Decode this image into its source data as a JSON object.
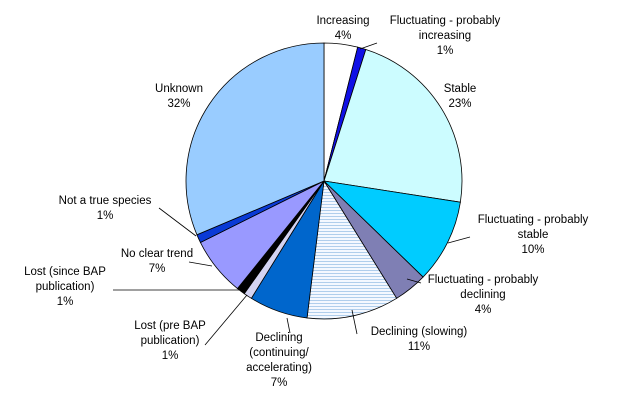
{
  "chart_data": {
    "type": "pie",
    "title": "",
    "slices": [
      {
        "label": "Increasing",
        "value": 4,
        "pct_label": "4%",
        "color": "#ffffff",
        "pattern": "none"
      },
      {
        "label": "Fluctuating - probably increasing",
        "value": 1,
        "pct_label": "1%",
        "color": "#1010e6",
        "pattern": "none"
      },
      {
        "label": "Stable",
        "value": 23,
        "pct_label": "23%",
        "color": "#ccfcff",
        "pattern": "none"
      },
      {
        "label": "Fluctuating - probably stable",
        "value": 10,
        "pct_label": "10%",
        "color": "#00ccff",
        "pattern": "none"
      },
      {
        "label": "Fluctuating - probably declining",
        "value": 4,
        "pct_label": "4%",
        "color": "#7f7fb4",
        "pattern": "none"
      },
      {
        "label": "Declining (slowing)",
        "value": 11,
        "pct_label": "11%",
        "color": "#f4f8ff",
        "pattern": "hlines"
      },
      {
        "label": "Declining (continuing/ accelerating)",
        "value": 7,
        "pct_label": "7%",
        "color": "#0066cc",
        "pattern": "none"
      },
      {
        "label": "Lost (pre BAP publication)",
        "value": 1,
        "pct_label": "1%",
        "color": "#d4d4f2",
        "pattern": "none"
      },
      {
        "label": "Lost (since BAP publication)",
        "value": 1,
        "pct_label": "1%",
        "color": "#000000",
        "pattern": "none"
      },
      {
        "label": "No clear trend",
        "value": 7,
        "pct_label": "7%",
        "color": "#9999ff",
        "pattern": "none"
      },
      {
        "label": "Not a true species",
        "value": 1,
        "pct_label": "1%",
        "color": "#0a3ad6",
        "pattern": "none"
      },
      {
        "label": "Unknown",
        "value": 32,
        "pct_label": "32%",
        "color": "#99ccff",
        "pattern": "none"
      }
    ],
    "start_angle_deg": 0,
    "direction": "clockwise",
    "legend": "none",
    "leader_lines": true
  }
}
